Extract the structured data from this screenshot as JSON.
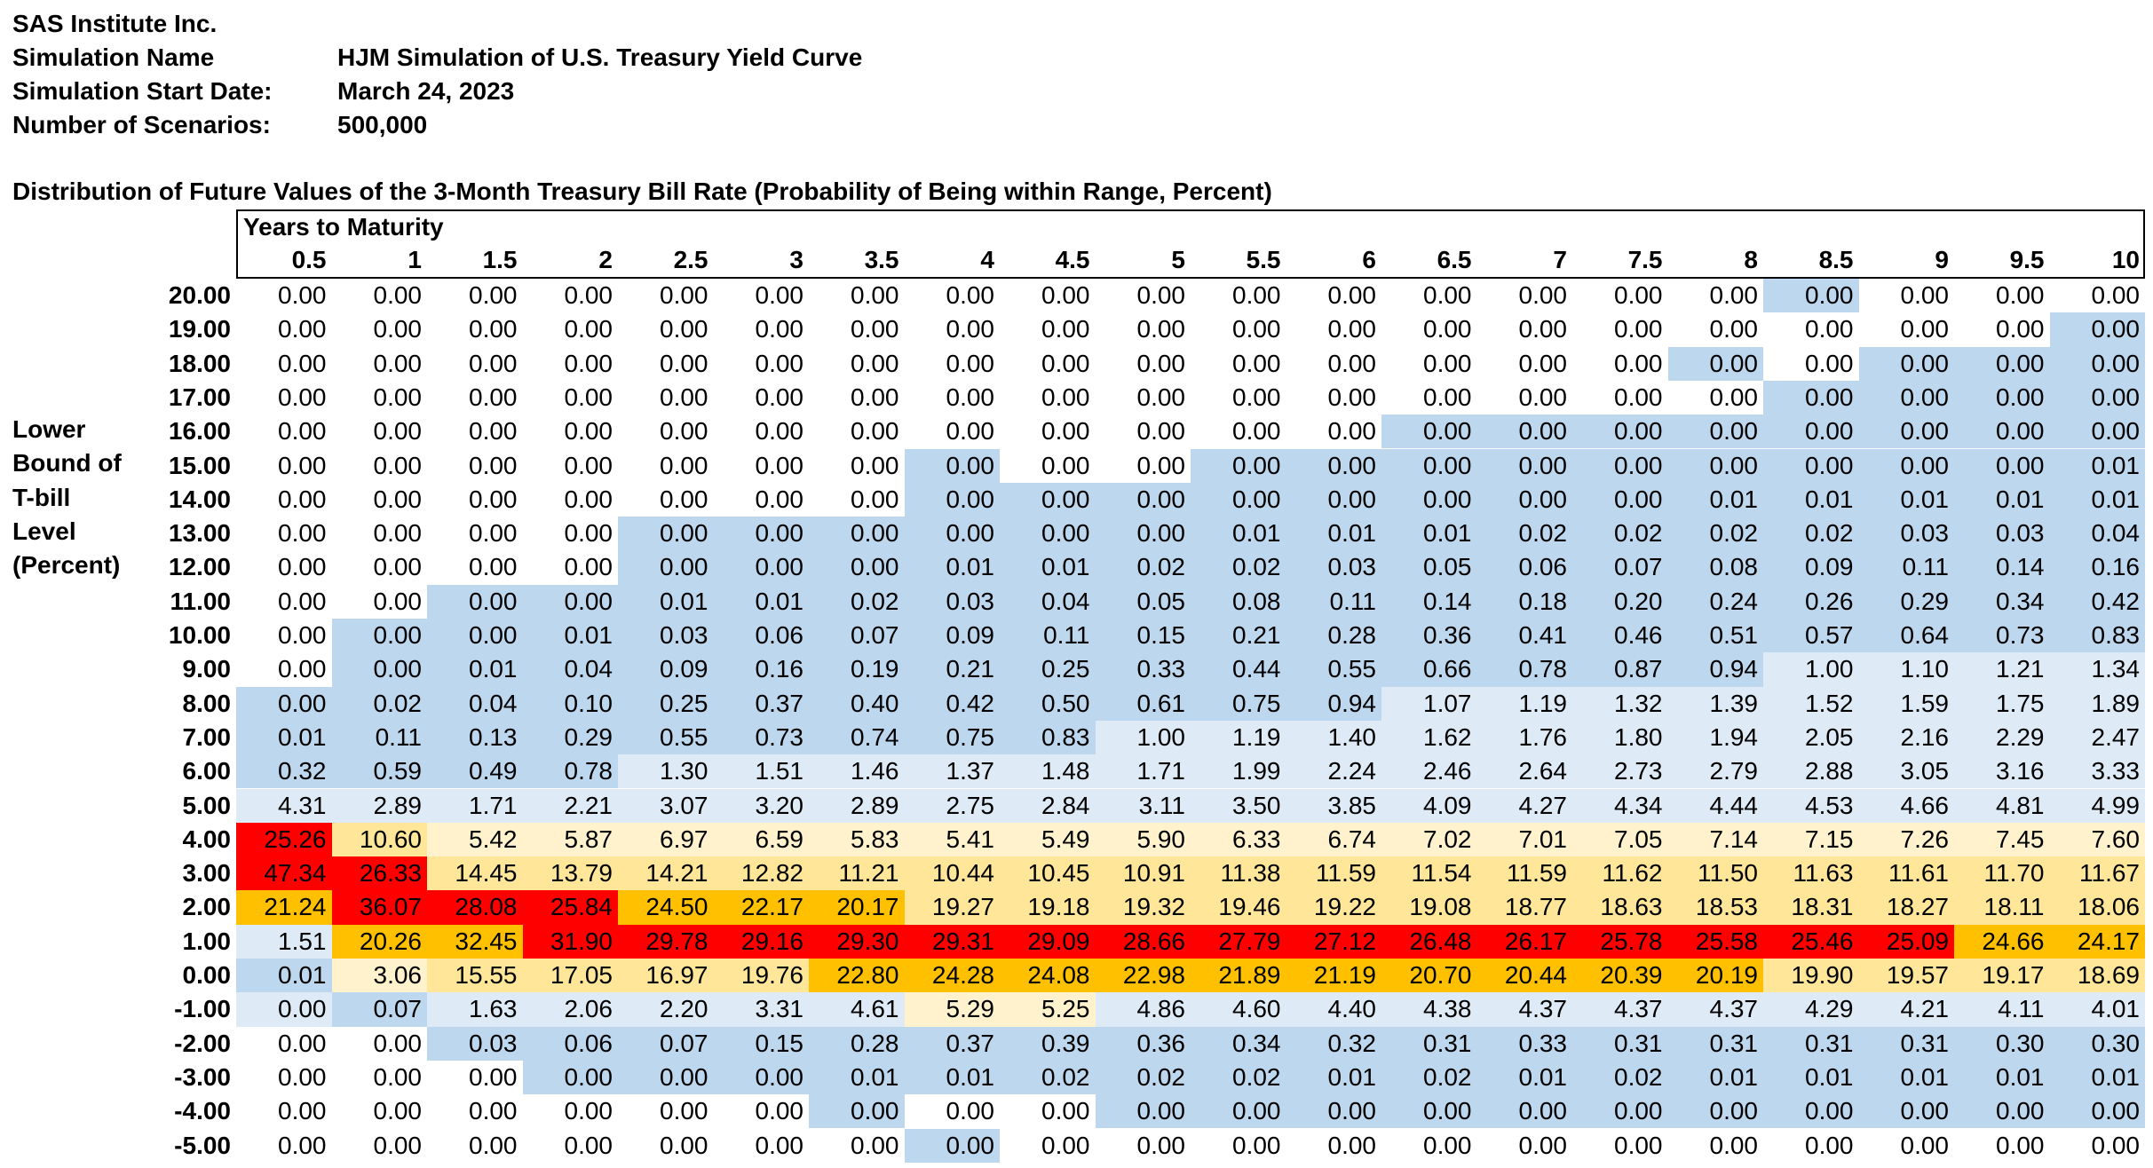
{
  "header": {
    "company": "SAS Institute Inc.",
    "rows": [
      {
        "label": "Simulation Name",
        "value": "HJM Simulation of U.S. Treasury Yield Curve"
      },
      {
        "label": "Simulation Start Date:",
        "value": "March 24, 2023"
      },
      {
        "label": "Number of Scenarios:",
        "value": "500,000"
      }
    ]
  },
  "table": {
    "title": "Distribution of Future Values of the 3-Month Treasury Bill Rate (Probability of Being within Range, Percent)",
    "column_group_label": "Years to Maturity",
    "row_axis_label": [
      "Lower",
      "Bound of",
      "T-bill",
      "Level",
      "(Percent)"
    ],
    "columns": [
      "0.5",
      "1",
      "1.5",
      "2",
      "2.5",
      "3",
      "3.5",
      "4",
      "4.5",
      "5",
      "5.5",
      "6",
      "6.5",
      "7",
      "7.5",
      "8",
      "8.5",
      "9",
      "9.5",
      "10"
    ],
    "colors": {
      "white": "#ffffff",
      "pale_blue": "#deebf7",
      "blue": "#bdd7ee",
      "pale_yellow": "#fff2cc",
      "yellow": "#ffe699",
      "orange": "#ffc000",
      "red": "#ff0000"
    },
    "rows": [
      {
        "label": "20.00",
        "values": [
          "0.00",
          "0.00",
          "0.00",
          "0.00",
          "0.00",
          "0.00",
          "0.00",
          "0.00",
          "0.00",
          "0.00",
          "0.00",
          "0.00",
          "0.00",
          "0.00",
          "0.00",
          "0.00",
          "0.00",
          "0.00",
          "0.00",
          "0.00"
        ],
        "shade": "WWWWWWWWWWWWWWWWBWWW"
      },
      {
        "label": "19.00",
        "values": [
          "0.00",
          "0.00",
          "0.00",
          "0.00",
          "0.00",
          "0.00",
          "0.00",
          "0.00",
          "0.00",
          "0.00",
          "0.00",
          "0.00",
          "0.00",
          "0.00",
          "0.00",
          "0.00",
          "0.00",
          "0.00",
          "0.00",
          "0.00"
        ],
        "shade": "WWWWWWWWWWWWWWWWWWWB"
      },
      {
        "label": "18.00",
        "values": [
          "0.00",
          "0.00",
          "0.00",
          "0.00",
          "0.00",
          "0.00",
          "0.00",
          "0.00",
          "0.00",
          "0.00",
          "0.00",
          "0.00",
          "0.00",
          "0.00",
          "0.00",
          "0.00",
          "0.00",
          "0.00",
          "0.00",
          "0.00"
        ],
        "shade": "WWWWWWWWWWWWWWWBWBBB"
      },
      {
        "label": "17.00",
        "values": [
          "0.00",
          "0.00",
          "0.00",
          "0.00",
          "0.00",
          "0.00",
          "0.00",
          "0.00",
          "0.00",
          "0.00",
          "0.00",
          "0.00",
          "0.00",
          "0.00",
          "0.00",
          "0.00",
          "0.00",
          "0.00",
          "0.00",
          "0.00"
        ],
        "shade": "WWWWWWWWWWWWWWWWBBBB"
      },
      {
        "label": "16.00",
        "values": [
          "0.00",
          "0.00",
          "0.00",
          "0.00",
          "0.00",
          "0.00",
          "0.00",
          "0.00",
          "0.00",
          "0.00",
          "0.00",
          "0.00",
          "0.00",
          "0.00",
          "0.00",
          "0.00",
          "0.00",
          "0.00",
          "0.00",
          "0.00"
        ],
        "shade": "WWWWWWWWWWWWBBBBBBBB"
      },
      {
        "label": "15.00",
        "values": [
          "0.00",
          "0.00",
          "0.00",
          "0.00",
          "0.00",
          "0.00",
          "0.00",
          "0.00",
          "0.00",
          "0.00",
          "0.00",
          "0.00",
          "0.00",
          "0.00",
          "0.00",
          "0.00",
          "0.00",
          "0.00",
          "0.00",
          "0.01"
        ],
        "shade": "WWWWWWWBWWBBBBBBBBBB"
      },
      {
        "label": "14.00",
        "values": [
          "0.00",
          "0.00",
          "0.00",
          "0.00",
          "0.00",
          "0.00",
          "0.00",
          "0.00",
          "0.00",
          "0.00",
          "0.00",
          "0.00",
          "0.00",
          "0.00",
          "0.00",
          "0.01",
          "0.01",
          "0.01",
          "0.01",
          "0.01"
        ],
        "shade": "WWWWWWWBBBBBBBBBBBBB"
      },
      {
        "label": "13.00",
        "values": [
          "0.00",
          "0.00",
          "0.00",
          "0.00",
          "0.00",
          "0.00",
          "0.00",
          "0.00",
          "0.00",
          "0.00",
          "0.01",
          "0.01",
          "0.01",
          "0.02",
          "0.02",
          "0.02",
          "0.02",
          "0.03",
          "0.03",
          "0.04"
        ],
        "shade": "WWWWBBBBBBBBBBBBBBBB"
      },
      {
        "label": "12.00",
        "values": [
          "0.00",
          "0.00",
          "0.00",
          "0.00",
          "0.00",
          "0.00",
          "0.00",
          "0.01",
          "0.01",
          "0.02",
          "0.02",
          "0.03",
          "0.05",
          "0.06",
          "0.07",
          "0.08",
          "0.09",
          "0.11",
          "0.14",
          "0.16"
        ],
        "shade": "WWWWBBBBBBBBBBBBBBBB"
      },
      {
        "label": "11.00",
        "values": [
          "0.00",
          "0.00",
          "0.00",
          "0.00",
          "0.01",
          "0.01",
          "0.02",
          "0.03",
          "0.04",
          "0.05",
          "0.08",
          "0.11",
          "0.14",
          "0.18",
          "0.20",
          "0.24",
          "0.26",
          "0.29",
          "0.34",
          "0.42"
        ],
        "shade": "WWBBBBBBBBBBBBBBBBBB"
      },
      {
        "label": "10.00",
        "values": [
          "0.00",
          "0.00",
          "0.00",
          "0.01",
          "0.03",
          "0.06",
          "0.07",
          "0.09",
          "0.11",
          "0.15",
          "0.21",
          "0.28",
          "0.36",
          "0.41",
          "0.46",
          "0.51",
          "0.57",
          "0.64",
          "0.73",
          "0.83"
        ],
        "shade": "WBBBBBBBBBBBBBBBBBBB"
      },
      {
        "label": "9.00",
        "values": [
          "0.00",
          "0.00",
          "0.01",
          "0.04",
          "0.09",
          "0.16",
          "0.19",
          "0.21",
          "0.25",
          "0.33",
          "0.44",
          "0.55",
          "0.66",
          "0.78",
          "0.87",
          "0.94",
          "1.00",
          "1.10",
          "1.21",
          "1.34"
        ],
        "shade": "WBBBBBBBBBBBBBBBPPPP"
      },
      {
        "label": "8.00",
        "values": [
          "0.00",
          "0.02",
          "0.04",
          "0.10",
          "0.25",
          "0.37",
          "0.40",
          "0.42",
          "0.50",
          "0.61",
          "0.75",
          "0.94",
          "1.07",
          "1.19",
          "1.32",
          "1.39",
          "1.52",
          "1.59",
          "1.75",
          "1.89"
        ],
        "shade": "BBBBBBBBBBBBPPPPPPPP"
      },
      {
        "label": "7.00",
        "values": [
          "0.01",
          "0.11",
          "0.13",
          "0.29",
          "0.55",
          "0.73",
          "0.74",
          "0.75",
          "0.83",
          "1.00",
          "1.19",
          "1.40",
          "1.62",
          "1.76",
          "1.80",
          "1.94",
          "2.05",
          "2.16",
          "2.29",
          "2.47"
        ],
        "shade": "BBBBBBBBBPPPPPPPPPPP"
      },
      {
        "label": "6.00",
        "values": [
          "0.32",
          "0.59",
          "0.49",
          "0.78",
          "1.30",
          "1.51",
          "1.46",
          "1.37",
          "1.48",
          "1.71",
          "1.99",
          "2.24",
          "2.46",
          "2.64",
          "2.73",
          "2.79",
          "2.88",
          "3.05",
          "3.16",
          "3.33"
        ],
        "shade": "BBBBPPPPPPPPPPPPPPPP"
      },
      {
        "label": "5.00",
        "values": [
          "4.31",
          "2.89",
          "1.71",
          "2.21",
          "3.07",
          "3.20",
          "2.89",
          "2.75",
          "2.84",
          "3.11",
          "3.50",
          "3.85",
          "4.09",
          "4.27",
          "4.34",
          "4.44",
          "4.53",
          "4.66",
          "4.81",
          "4.99"
        ],
        "shade": "PPPPPPPPPPPPPPPPPPPP"
      },
      {
        "label": "4.00",
        "values": [
          "25.26",
          "10.60",
          "5.42",
          "5.87",
          "6.97",
          "6.59",
          "5.83",
          "5.41",
          "5.49",
          "5.90",
          "6.33",
          "6.74",
          "7.02",
          "7.01",
          "7.05",
          "7.14",
          "7.15",
          "7.26",
          "7.45",
          "7.60"
        ],
        "shade": "RYLLLLLLLLLLLLLLLLLL"
      },
      {
        "label": "3.00",
        "values": [
          "47.34",
          "26.33",
          "14.45",
          "13.79",
          "14.21",
          "12.82",
          "11.21",
          "10.44",
          "10.45",
          "10.91",
          "11.38",
          "11.59",
          "11.54",
          "11.59",
          "11.62",
          "11.50",
          "11.63",
          "11.61",
          "11.70",
          "11.67"
        ],
        "shade": "RRYYYYYYYYYYYYYYYYYY"
      },
      {
        "label": "2.00",
        "values": [
          "21.24",
          "36.07",
          "28.08",
          "25.84",
          "24.50",
          "22.17",
          "20.17",
          "19.27",
          "19.18",
          "19.32",
          "19.46",
          "19.22",
          "19.08",
          "18.77",
          "18.63",
          "18.53",
          "18.31",
          "18.27",
          "18.11",
          "18.06"
        ],
        "shade": "ORRROOOYYYYYYYYYYYYY"
      },
      {
        "label": "1.00",
        "values": [
          "1.51",
          "20.26",
          "32.45",
          "31.90",
          "29.78",
          "29.16",
          "29.30",
          "29.31",
          "29.09",
          "28.66",
          "27.79",
          "27.12",
          "26.48",
          "26.17",
          "25.78",
          "25.58",
          "25.46",
          "25.09",
          "24.66",
          "24.17"
        ],
        "shade": "POORRRRRRRRRRRRRRROO"
      },
      {
        "label": "0.00",
        "values": [
          "0.01",
          "3.06",
          "15.55",
          "17.05",
          "16.97",
          "19.76",
          "22.80",
          "24.28",
          "24.08",
          "22.98",
          "21.89",
          "21.19",
          "20.70",
          "20.44",
          "20.39",
          "20.19",
          "19.90",
          "19.57",
          "19.17",
          "18.69"
        ],
        "shade": "BLYYYYOOOOOOOOOOYYYY"
      },
      {
        "label": "-1.00",
        "values": [
          "0.00",
          "0.07",
          "1.63",
          "2.06",
          "2.20",
          "3.31",
          "4.61",
          "5.29",
          "5.25",
          "4.86",
          "4.60",
          "4.40",
          "4.38",
          "4.37",
          "4.37",
          "4.37",
          "4.29",
          "4.21",
          "4.11",
          "4.01"
        ],
        "shade": "PBPPPPPLLPPPPPPPPPPP"
      },
      {
        "label": "-2.00",
        "values": [
          "0.00",
          "0.00",
          "0.03",
          "0.06",
          "0.07",
          "0.15",
          "0.28",
          "0.37",
          "0.39",
          "0.36",
          "0.34",
          "0.32",
          "0.31",
          "0.33",
          "0.31",
          "0.31",
          "0.31",
          "0.31",
          "0.30",
          "0.30"
        ],
        "shade": "WWBBBBBBBBBBBBBBBBBB"
      },
      {
        "label": "-3.00",
        "values": [
          "0.00",
          "0.00",
          "0.00",
          "0.00",
          "0.00",
          "0.00",
          "0.01",
          "0.01",
          "0.02",
          "0.02",
          "0.02",
          "0.01",
          "0.02",
          "0.01",
          "0.02",
          "0.01",
          "0.01",
          "0.01",
          "0.01",
          "0.01"
        ],
        "shade": "WWWBBBBBBBBBBBBBBBBB"
      },
      {
        "label": "-4.00",
        "values": [
          "0.00",
          "0.00",
          "0.00",
          "0.00",
          "0.00",
          "0.00",
          "0.00",
          "0.00",
          "0.00",
          "0.00",
          "0.00",
          "0.00",
          "0.00",
          "0.00",
          "0.00",
          "0.00",
          "0.00",
          "0.00",
          "0.00",
          "0.00"
        ],
        "shade": "WWWWWWBWWBBBBBBBBBBB"
      },
      {
        "label": "-5.00",
        "values": [
          "0.00",
          "0.00",
          "0.00",
          "0.00",
          "0.00",
          "0.00",
          "0.00",
          "0.00",
          "0.00",
          "0.00",
          "0.00",
          "0.00",
          "0.00",
          "0.00",
          "0.00",
          "0.00",
          "0.00",
          "0.00",
          "0.00",
          "0.00"
        ],
        "shade": "WWWWWWWBWWWWWWWWWWWW"
      }
    ]
  }
}
